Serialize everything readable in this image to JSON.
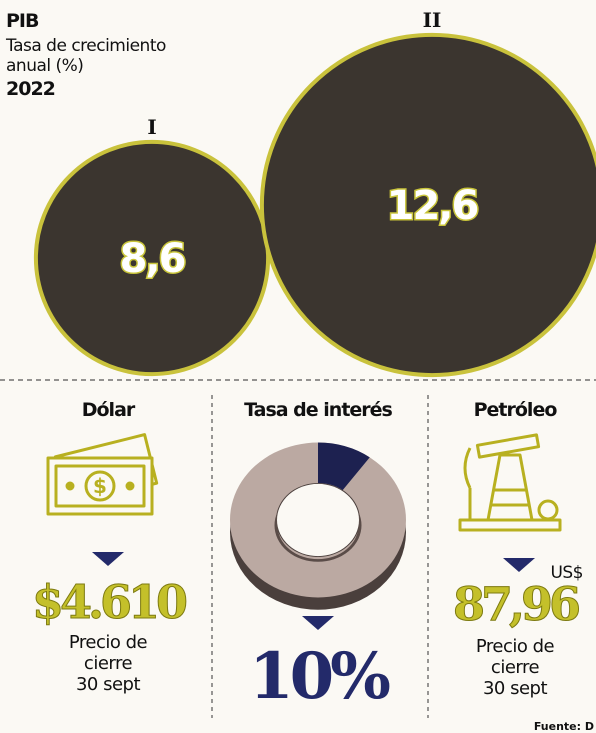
{
  "chart_data": [
    {
      "type": "bubble",
      "title": "PIB",
      "subtitle": [
        "Tasa de crecimiento",
        "anual (%)"
      ],
      "year": "2022",
      "categories": [
        "I",
        "II"
      ],
      "values": [
        8.6,
        12.6
      ],
      "value_labels": [
        "8,6",
        "12,6"
      ],
      "color": "#3b352f"
    },
    {
      "type": "donut",
      "title": "Tasa de interés",
      "values": [
        10
      ],
      "value_labels": [
        "10%"
      ],
      "color": "#1d2150",
      "rest_color": "#bba9a2"
    }
  ],
  "panels": [
    {
      "title": "Dólar",
      "value": "$4.610",
      "note": [
        "Precio de",
        "cierre",
        "30 sept"
      ]
    },
    {
      "title": "Petróleo",
      "unit": "US$",
      "value": "87,96",
      "note": [
        "Precio de",
        "cierre",
        "30 sept"
      ]
    }
  ],
  "source": "Fuente: D"
}
